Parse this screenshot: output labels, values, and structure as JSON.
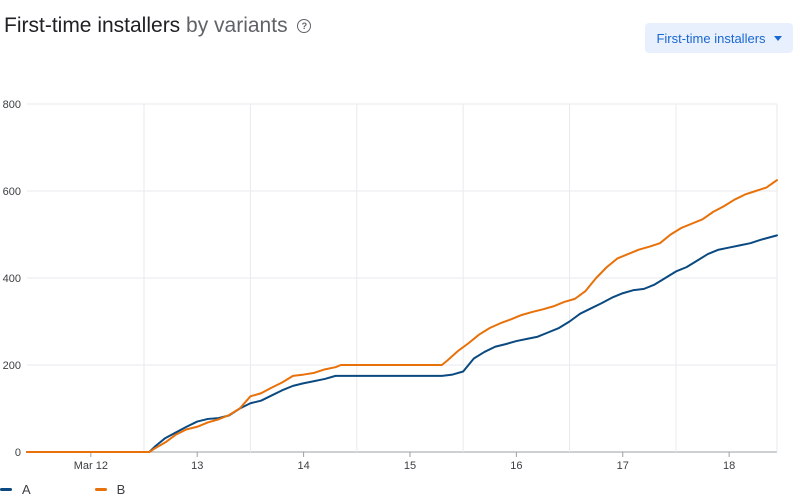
{
  "header": {
    "title_main": "First-time installers",
    "title_sub": "by variants",
    "help_icon": "help-circle-icon",
    "metric_dropdown_label": "First-time installers",
    "dropdown_icon": "caret-down-icon"
  },
  "chart_data": {
    "type": "line",
    "title": "First-time installers by variants",
    "xlabel": "",
    "ylabel": "",
    "ylim": [
      0,
      800
    ],
    "yticks": [
      0,
      200,
      400,
      600,
      800
    ],
    "xlim": [
      11.4,
      18.45
    ],
    "xticks": [
      {
        "value": 12,
        "label": "Mar 12"
      },
      {
        "value": 13,
        "label": "13"
      },
      {
        "value": 14,
        "label": "14"
      },
      {
        "value": 15,
        "label": "15"
      },
      {
        "value": 16,
        "label": "16"
      },
      {
        "value": 17,
        "label": "17"
      },
      {
        "value": 18,
        "label": "18"
      }
    ],
    "grid": true,
    "legend_position": "bottom-left",
    "series": [
      {
        "name": "A",
        "color": "#0b4a80",
        "x": [
          11.4,
          12.55,
          12.6,
          12.7,
          12.8,
          12.9,
          13.0,
          13.1,
          13.2,
          13.3,
          13.4,
          13.5,
          13.6,
          13.7,
          13.8,
          13.9,
          14.0,
          14.1,
          14.2,
          14.3,
          14.35,
          14.5,
          15.0,
          15.3,
          15.4,
          15.5,
          15.6,
          15.7,
          15.8,
          15.9,
          16.0,
          16.1,
          16.2,
          16.3,
          16.4,
          16.5,
          16.6,
          16.7,
          16.8,
          16.9,
          17.0,
          17.1,
          17.2,
          17.3,
          17.4,
          17.5,
          17.6,
          17.7,
          17.8,
          17.9,
          18.0,
          18.1,
          18.2,
          18.3,
          18.45
        ],
        "y": [
          0,
          0,
          12,
          32,
          45,
          58,
          70,
          76,
          78,
          84,
          100,
          112,
          118,
          130,
          142,
          152,
          158,
          163,
          168,
          175,
          175,
          175,
          175,
          175,
          178,
          185,
          215,
          230,
          242,
          248,
          255,
          260,
          265,
          275,
          285,
          300,
          318,
          330,
          342,
          355,
          365,
          372,
          375,
          385,
          400,
          415,
          425,
          440,
          455,
          465,
          470,
          475,
          480,
          488,
          498
        ]
      },
      {
        "name": "B",
        "color": "#e8710a",
        "x": [
          11.4,
          12.55,
          12.6,
          12.7,
          12.8,
          12.9,
          13.0,
          13.1,
          13.2,
          13.3,
          13.4,
          13.5,
          13.6,
          13.7,
          13.8,
          13.9,
          14.0,
          14.1,
          14.2,
          14.3,
          14.35,
          14.5,
          15.0,
          15.3,
          15.35,
          15.45,
          15.55,
          15.65,
          15.75,
          15.85,
          15.95,
          16.05,
          16.15,
          16.25,
          16.35,
          16.45,
          16.55,
          16.65,
          16.75,
          16.85,
          16.95,
          17.05,
          17.15,
          17.25,
          17.35,
          17.45,
          17.55,
          17.65,
          17.75,
          17.85,
          17.95,
          18.05,
          18.15,
          18.25,
          18.35,
          18.45
        ],
        "y": [
          0,
          0,
          8,
          22,
          40,
          52,
          58,
          68,
          75,
          85,
          100,
          128,
          135,
          148,
          160,
          175,
          178,
          182,
          190,
          195,
          200,
          200,
          200,
          200,
          210,
          232,
          250,
          270,
          285,
          296,
          305,
          315,
          322,
          328,
          335,
          345,
          352,
          370,
          400,
          425,
          445,
          455,
          465,
          472,
          480,
          500,
          515,
          525,
          535,
          552,
          565,
          580,
          592,
          600,
          608,
          625
        ]
      }
    ]
  }
}
